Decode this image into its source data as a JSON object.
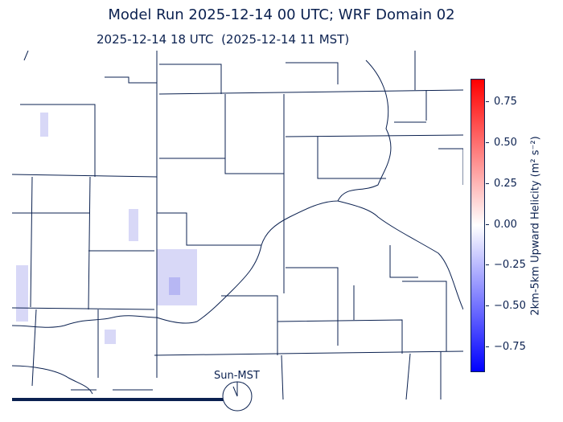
{
  "title": "Model Run 2025-12-14 00 UTC; WRF Domain 02",
  "subtitle": "2025-12-14 18 UTC  (2025-12-14 11 MST)",
  "colorbar": {
    "label": "2km-5km Upward Helicity (m² s⁻²)",
    "range": [
      -0.9,
      0.9
    ],
    "ticks": [
      "0.75",
      "0.50",
      "0.25",
      "0.00",
      "−0.25",
      "−0.50",
      "−0.75"
    ],
    "tick_values": [
      0.75,
      0.5,
      0.25,
      0.0,
      -0.25,
      -0.5,
      -0.75
    ],
    "colormap": "bwr",
    "colors": {
      "max": "#ff0000",
      "mid": "#ffffff",
      "min": "#0000ff"
    }
  },
  "clock": {
    "label": "Sun-MST"
  },
  "colors": {
    "lines": "#0b2150"
  }
}
